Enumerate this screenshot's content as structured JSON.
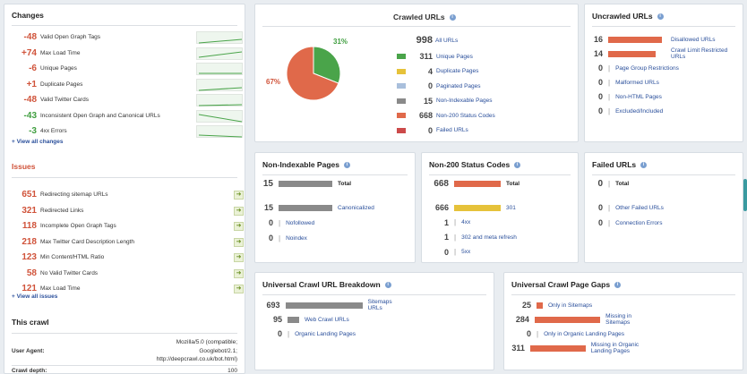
{
  "colors": {
    "orange": "#e0694a",
    "green": "#4aa44a",
    "yellow": "#e6c23a",
    "gray": "#8a8a8a",
    "lightblue": "#a9bfdc",
    "red": "#cc4a4a"
  },
  "changes": {
    "title": "Changes",
    "items": [
      {
        "value": "-48",
        "label": "Valid Open Graph Tags",
        "tone": "red"
      },
      {
        "value": "+74",
        "label": "Max Load Time",
        "tone": "red"
      },
      {
        "value": "-6",
        "label": "Unique Pages",
        "tone": "red"
      },
      {
        "value": "+1",
        "label": "Duplicate Pages",
        "tone": "red"
      },
      {
        "value": "-48",
        "label": "Valid Twitter Cards",
        "tone": "red"
      },
      {
        "value": "-43",
        "label": "Inconsistent Open Graph and Canonical URLs",
        "tone": "green"
      },
      {
        "value": "-3",
        "label": "4xx Errors",
        "tone": "green"
      }
    ],
    "view_all": "+ View all changes"
  },
  "issues": {
    "title": "Issues",
    "items": [
      {
        "value": "651",
        "label": "Redirecting sitemap URLs"
      },
      {
        "value": "321",
        "label": "Redirected Links"
      },
      {
        "value": "118",
        "label": "Incomplete Open Graph Tags"
      },
      {
        "value": "218",
        "label": "Max Twitter Card Description Length"
      },
      {
        "value": "123",
        "label": "Min Content/HTML Ratio"
      },
      {
        "value": "58",
        "label": "No Valid Twitter Cards"
      },
      {
        "value": "121",
        "label": "Max Load Time"
      }
    ],
    "view_all": "+ View all issues"
  },
  "this_crawl": {
    "title": "This crawl",
    "user_agent_label": "User Agent:",
    "user_agent_line1": "Mozilla/5.0 (compatible;",
    "user_agent_line2": "Googlebot/2.1;",
    "user_agent_line3": "http://deepcrawl.co.uk/bot.html)",
    "depth_label": "Crawl depth:",
    "depth_value": "100"
  },
  "crawled": {
    "title": "Crawled URLs",
    "pie_pct_green": "31%",
    "pie_pct_orange": "67%",
    "total": {
      "value": "998",
      "label": "All URLs"
    },
    "items": [
      {
        "value": "311",
        "label": "Unique Pages",
        "color": "#4aa44a"
      },
      {
        "value": "4",
        "label": "Duplicate Pages",
        "color": "#e6c23a"
      },
      {
        "value": "0",
        "label": "Paginated Pages",
        "color": "#a9bfdc"
      },
      {
        "value": "15",
        "label": "Non-Indexable Pages",
        "color": "#8a8a8a"
      },
      {
        "value": "668",
        "label": "Non-200 Status Codes",
        "color": "#e0694a"
      },
      {
        "value": "0",
        "label": "Failed URLs",
        "color": "#cc4a4a"
      }
    ]
  },
  "uncrawled": {
    "title": "Uncrawled URLs",
    "items": [
      {
        "value": "16",
        "label": "Disallowed URLs",
        "bar": 1.0
      },
      {
        "value": "14",
        "label": "Crawl Limit Restricted URLs",
        "bar": 0.875
      },
      {
        "value": "0",
        "label": "Page Group Restrictions",
        "bar": 0
      },
      {
        "value": "0",
        "label": "Malformed URLs",
        "bar": 0
      },
      {
        "value": "0",
        "label": "Non-HTML Pages",
        "bar": 0
      },
      {
        "value": "0",
        "label": "Excluded/Included",
        "bar": 0
      }
    ]
  },
  "non_indexable": {
    "title": "Non-Indexable Pages",
    "total": {
      "value": "15",
      "label": "Total"
    },
    "items": [
      {
        "value": "15",
        "label": "Canonicalized",
        "bar": 1.0
      },
      {
        "value": "0",
        "label": "Nofollowed",
        "bar": 0
      },
      {
        "value": "0",
        "label": "Noindex",
        "bar": 0
      }
    ]
  },
  "non200": {
    "title": "Non-200 Status Codes",
    "total": {
      "value": "668",
      "label": "Total"
    },
    "items": [
      {
        "value": "666",
        "label": "301",
        "bar": 1.0,
        "color": "#e6c23a"
      },
      {
        "value": "1",
        "label": "4xx",
        "bar": 0.0015
      },
      {
        "value": "1",
        "label": "302 and meta refresh",
        "bar": 0.0015
      },
      {
        "value": "0",
        "label": "5xx",
        "bar": 0
      }
    ]
  },
  "failed": {
    "title": "Failed URLs",
    "total": {
      "value": "0",
      "label": "Total"
    },
    "items": [
      {
        "value": "0",
        "label": "Other Failed URLs"
      },
      {
        "value": "0",
        "label": "Connection Errors"
      }
    ]
  },
  "breakdown": {
    "title": "Universal Crawl URL Breakdown",
    "items": [
      {
        "value": "693",
        "label": "Sitemaps URLs",
        "bar": 1.0
      },
      {
        "value": "95",
        "label": "Web Crawl URLs",
        "bar": 0.137
      },
      {
        "value": "0",
        "label": "Organic Landing Pages",
        "bar": 0
      }
    ]
  },
  "gaps": {
    "title": "Universal Crawl Page Gaps",
    "items": [
      {
        "value": "25",
        "label": "Only in Sitemaps",
        "bar": 0.08
      },
      {
        "value": "284",
        "label": "Missing in Sitemaps",
        "bar": 0.913
      },
      {
        "value": "0",
        "label": "Only in Organic Landing Pages",
        "bar": 0
      },
      {
        "value": "311",
        "label": "Missing in Organic Landing Pages",
        "bar": 1.0
      }
    ]
  }
}
